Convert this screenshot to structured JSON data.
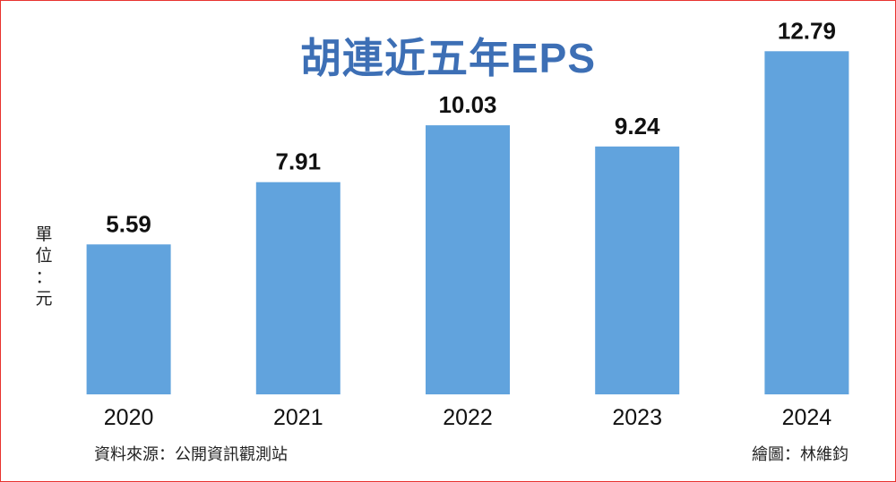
{
  "chart_data": {
    "type": "bar",
    "title": "胡連近五年EPS",
    "unit_label": [
      "單",
      "位",
      "：",
      "元"
    ],
    "categories": [
      "2020",
      "2021",
      "2022",
      "2023",
      "2024"
    ],
    "values": [
      5.59,
      7.91,
      10.03,
      9.24,
      12.79
    ],
    "value_labels": [
      "5.59",
      "7.91",
      "10.03",
      "9.24",
      "12.79"
    ],
    "ylim": [
      0,
      14
    ],
    "grid": false,
    "bar_color": "#61a3dd",
    "title_color": "#3d6fb5",
    "border_color": "#e8332f"
  },
  "footer": {
    "source": "資料來源：公開資訊觀測站",
    "author": "繪圖：林維鈞"
  }
}
